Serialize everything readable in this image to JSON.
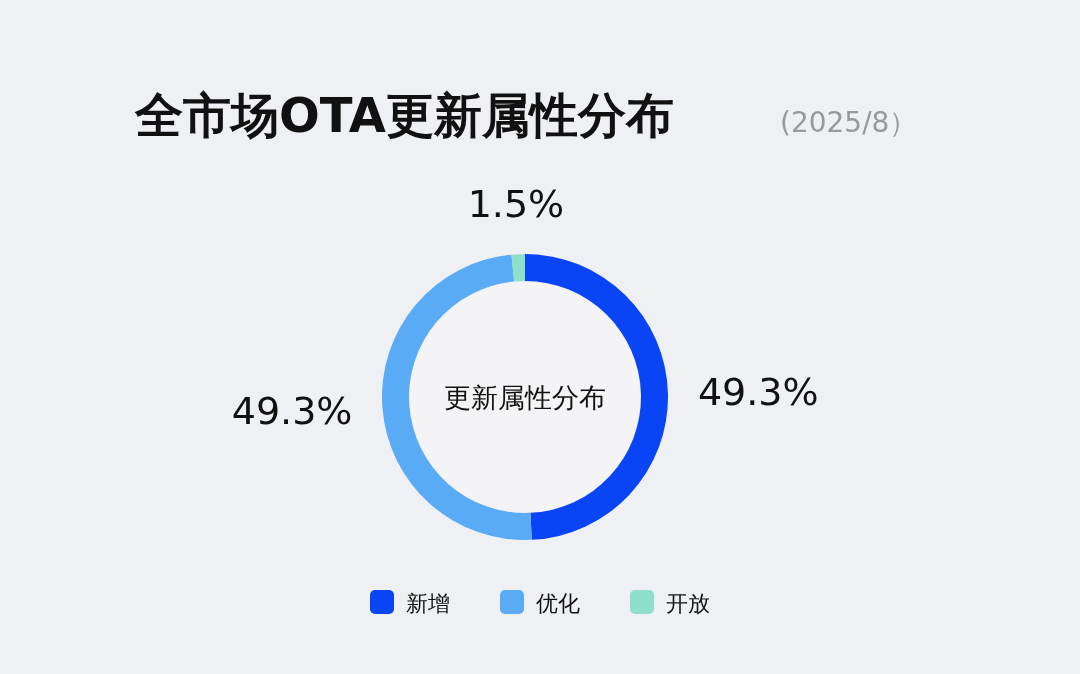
{
  "chart_data": {
    "type": "donut",
    "title": "全市场OTA更新属性分布",
    "subtitle": "(2025/8）",
    "annotations": [
      "更新属性分布"
    ],
    "categories": [
      "新增",
      "优化",
      "开放"
    ],
    "values": [
      49.3,
      49.3,
      1.5
    ],
    "colors": [
      "#0a45f5",
      "#5aabf6",
      "#8fe0cb"
    ],
    "value_labels": [
      "49.3%",
      "49.3%",
      "1.5%"
    ],
    "legend": "bottom"
  }
}
